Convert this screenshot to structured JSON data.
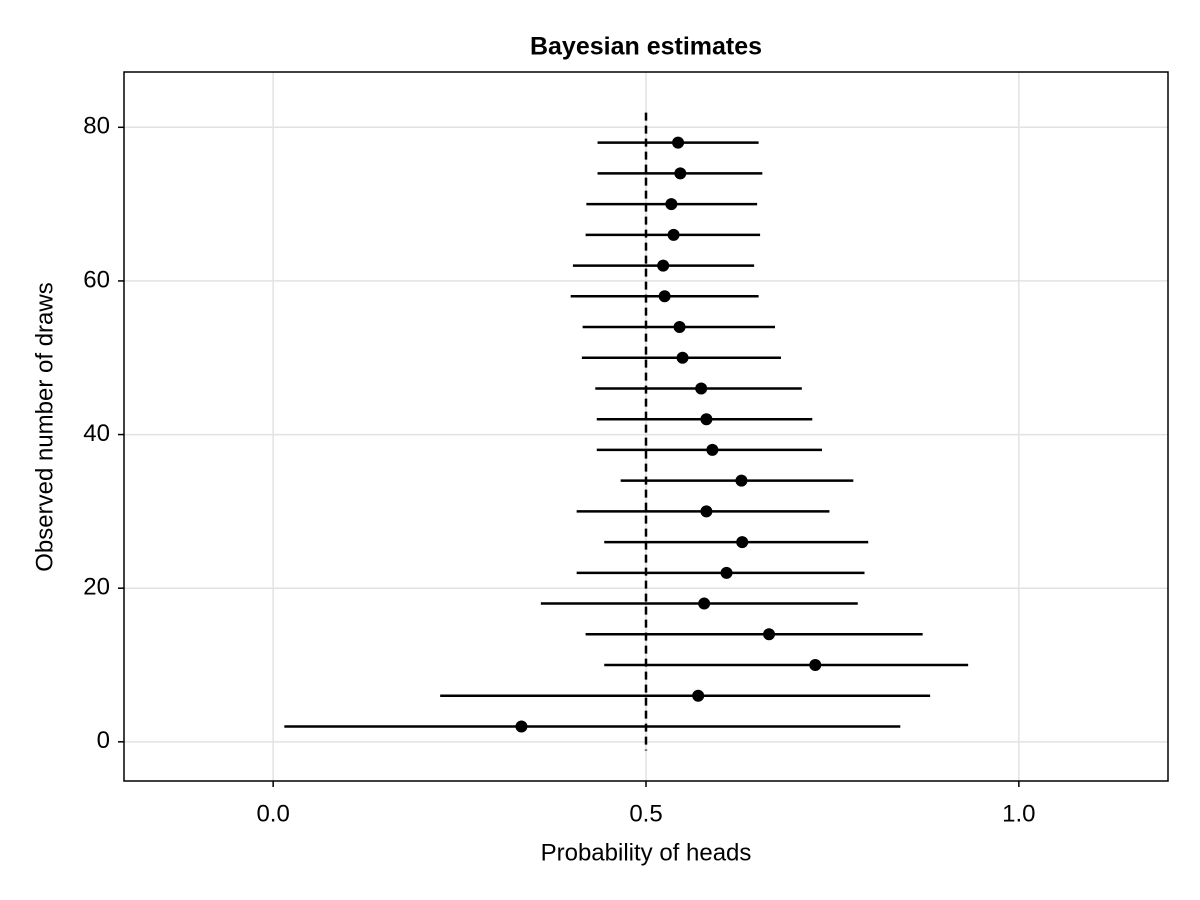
{
  "chart_data": {
    "type": "errorbar",
    "title": "Bayesian estimates",
    "x_label": "Probability of heads",
    "y_label": "Observed number of draws",
    "x": [
      0.333,
      0.57,
      0.727,
      0.665,
      0.578,
      0.608,
      0.629,
      0.581,
      0.628,
      0.589,
      0.581,
      0.574,
      0.549,
      0.545,
      0.525,
      0.523,
      0.537,
      0.534,
      0.546,
      0.543
    ],
    "x_lower": [
      0.015,
      0.224,
      0.444,
      0.419,
      0.359,
      0.407,
      0.444,
      0.407,
      0.466,
      0.434,
      0.434,
      0.432,
      0.414,
      0.415,
      0.399,
      0.402,
      0.419,
      0.42,
      0.435,
      0.435
    ],
    "x_upper": [
      0.841,
      0.881,
      0.932,
      0.871,
      0.784,
      0.793,
      0.798,
      0.746,
      0.778,
      0.736,
      0.723,
      0.709,
      0.681,
      0.673,
      0.651,
      0.645,
      0.653,
      0.649,
      0.656,
      0.651
    ],
    "y": [
      2,
      6,
      10,
      14,
      18,
      22,
      26,
      30,
      34,
      38,
      42,
      46,
      50,
      54,
      58,
      62,
      66,
      70,
      74,
      78
    ],
    "color": "#000000",
    "reference_x": 0.5,
    "xlim": [
      -0.2,
      1.2
    ],
    "ylim": [
      -5.1,
      87.2
    ],
    "xticks": [
      {
        "value": 0,
        "label": "0.0"
      },
      0.5,
      {
        "value": 1,
        "label": "1.0"
      }
    ],
    "yticks": [
      0,
      20,
      40,
      60,
      80
    ],
    "grid": true
  }
}
